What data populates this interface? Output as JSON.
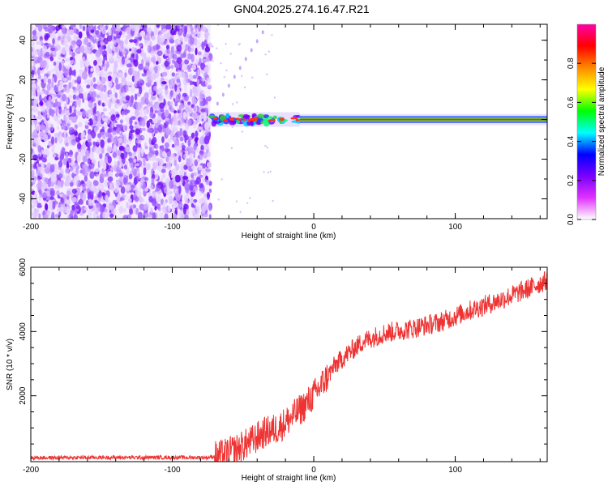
{
  "title": "GN04.2025.274.16.47.R21",
  "chart_data": [
    {
      "type": "heatmap",
      "xlabel": "Height of straight line (km)",
      "ylabel": "Frequency (Hz)",
      "xlim": [
        -200,
        165
      ],
      "ylim": [
        -50,
        48
      ],
      "x_ticks": [
        -200,
        -100,
        0,
        100
      ],
      "y_ticks": [
        -40,
        -20,
        0,
        20,
        40
      ],
      "noise_region_x": [
        -200,
        -73
      ],
      "signal_band_frequency": 0,
      "signal_start_x": -73,
      "colorbar": {
        "label": "Normalized spectral amplitude",
        "range": [
          0,
          1
        ],
        "ticks": [
          "0.0",
          "0.2",
          "0.4",
          "0.6",
          "0.8"
        ],
        "colors": [
          "#ffffff",
          "#e033ff",
          "#7a00ff",
          "#0000ff",
          "#00ffff",
          "#00ff00",
          "#ffff00",
          "#ff8800",
          "#ff0000",
          "#ff00aa"
        ]
      }
    },
    {
      "type": "line",
      "xlabel": "Height of straight line (km)",
      "ylabel": "SNR (10 * v/v)",
      "xlim": [
        -200,
        165
      ],
      "ylim": [
        -50,
        6000
      ],
      "x_ticks": [
        -200,
        -100,
        0,
        100
      ],
      "y_ticks": [
        2000,
        4000,
        6000
      ],
      "color": "#ee3333",
      "x": [
        -200,
        -150,
        -100,
        -75,
        -65,
        -55,
        -45,
        -35,
        -25,
        -15,
        -5,
        5,
        15,
        25,
        35,
        50,
        70,
        90,
        110,
        130,
        150,
        165
      ],
      "y": [
        70,
        80,
        80,
        80,
        150,
        320,
        560,
        850,
        1000,
        1350,
        1750,
        2300,
        2950,
        3350,
        3700,
        3950,
        4100,
        4300,
        4650,
        4950,
        5300,
        5600
      ]
    }
  ]
}
